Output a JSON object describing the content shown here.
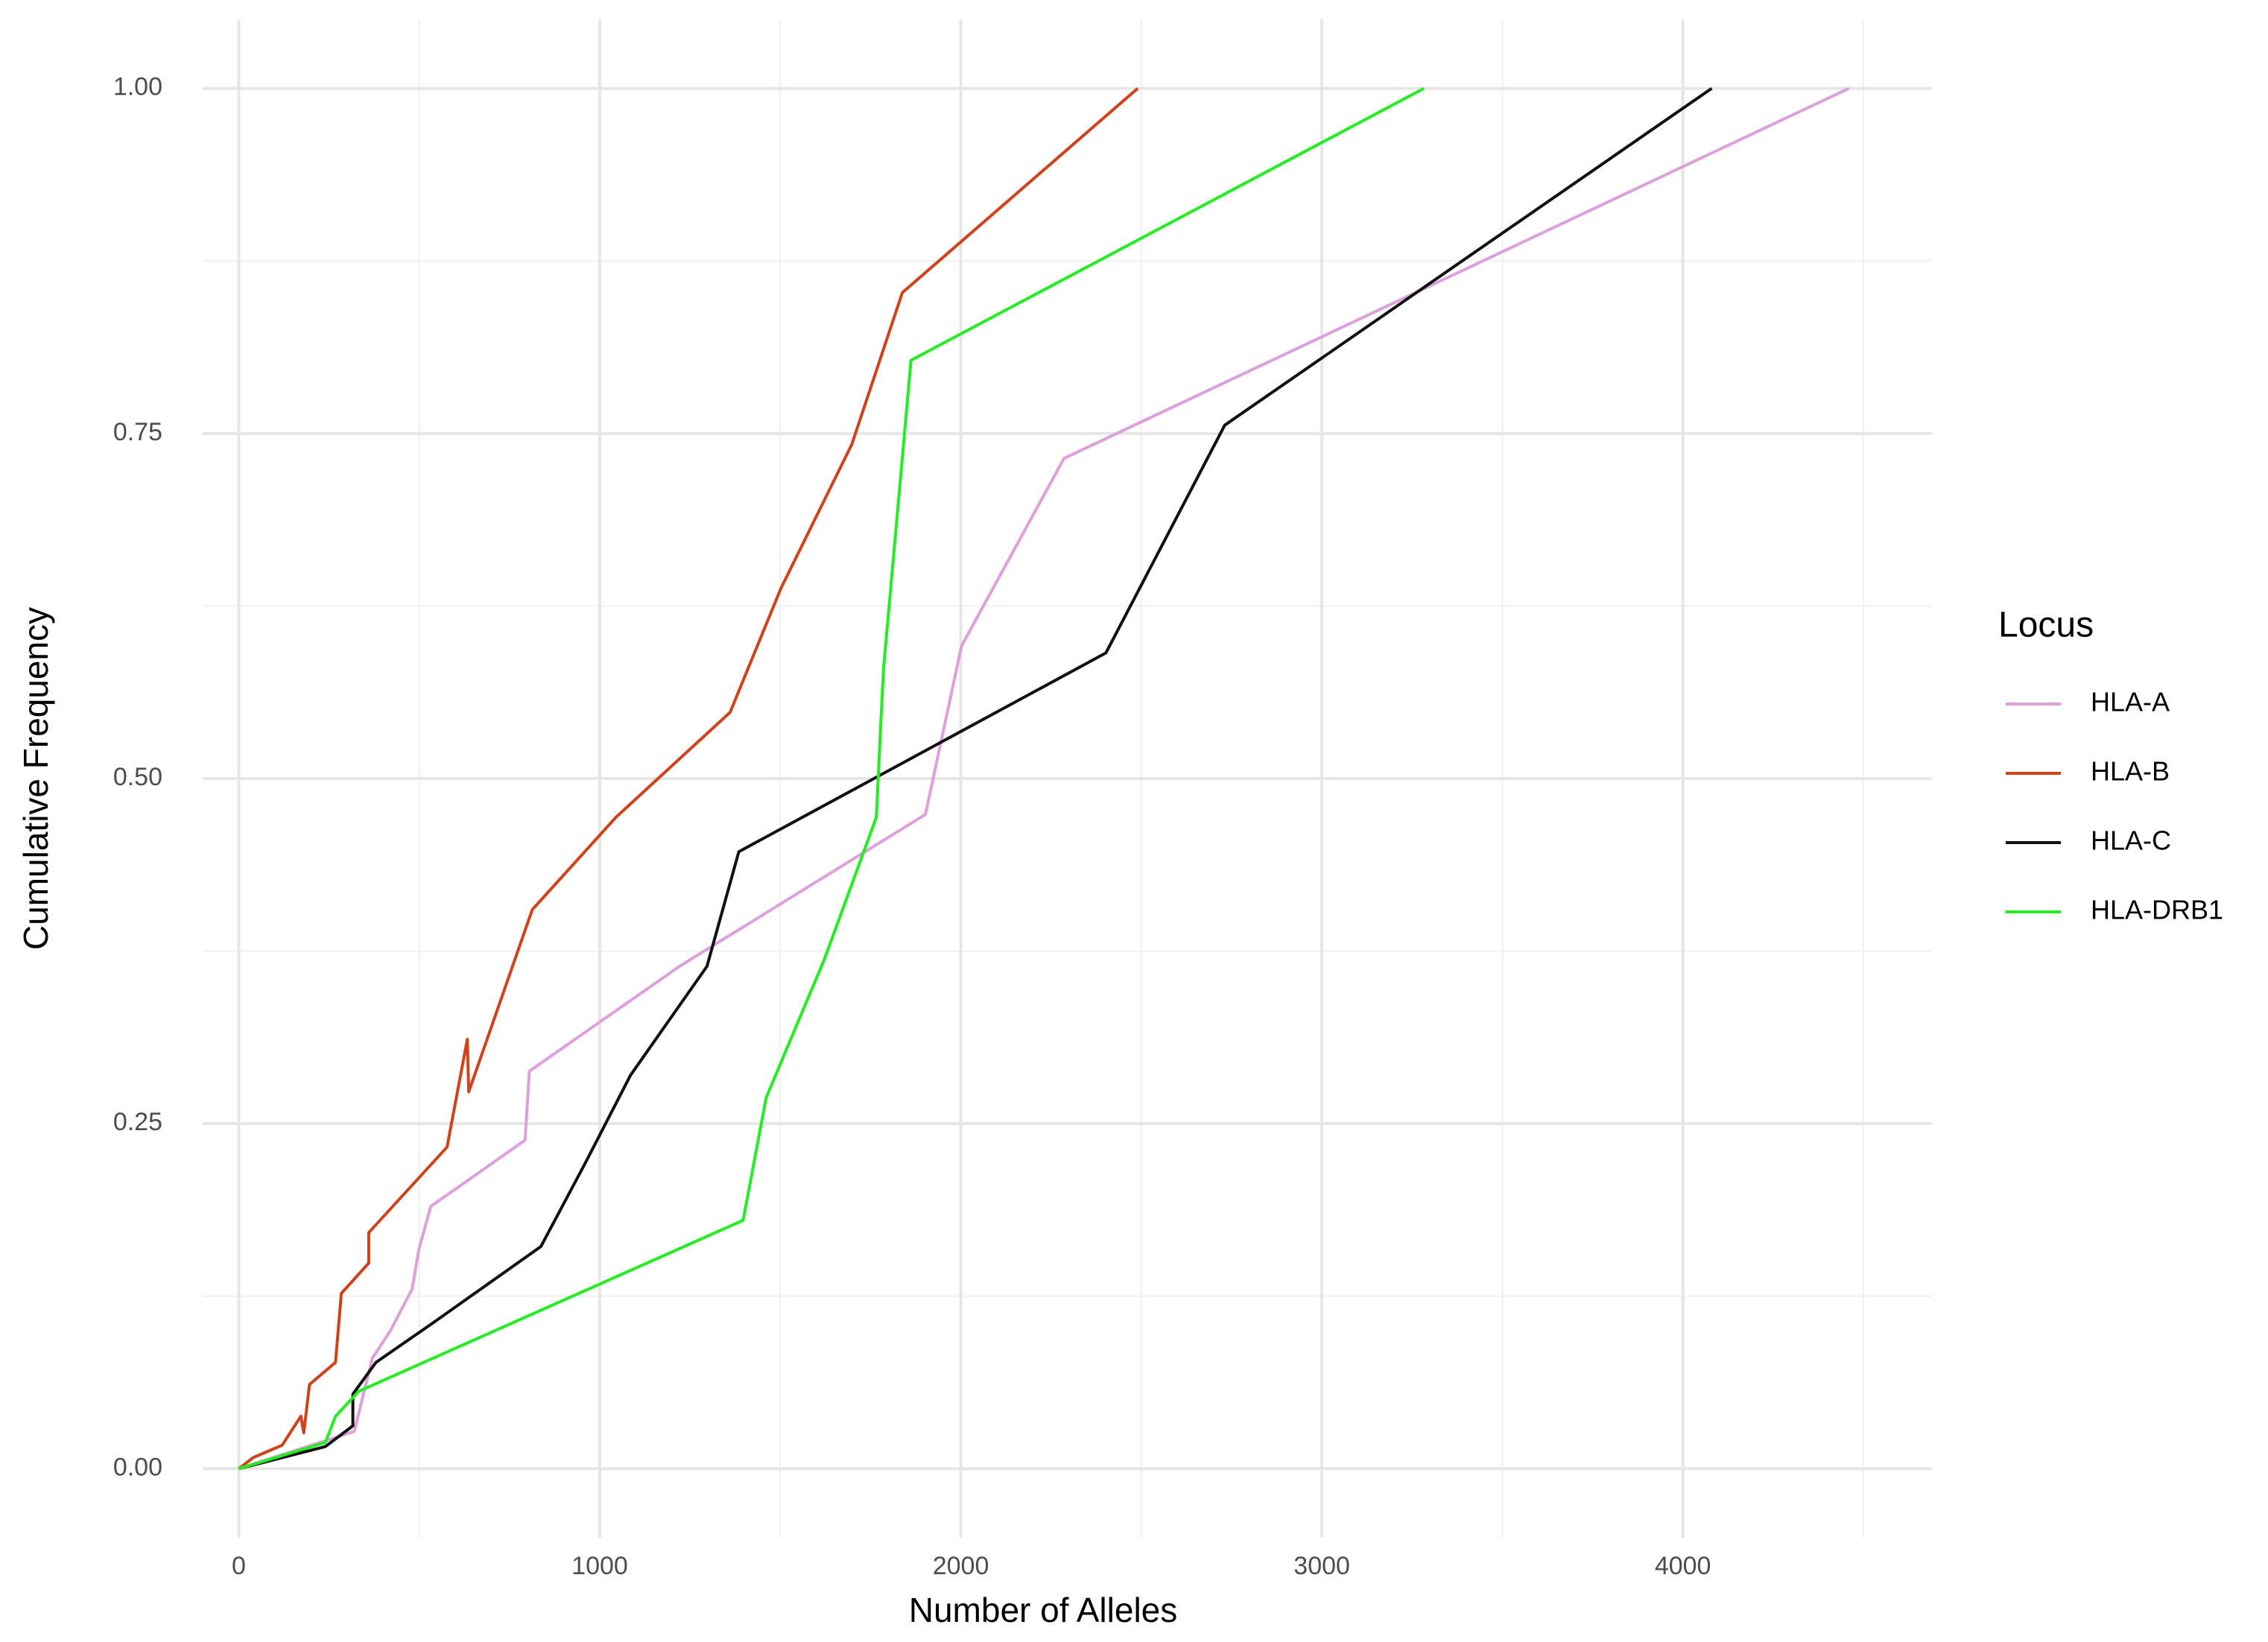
{
  "chart_data": {
    "type": "line",
    "xlabel": "Number of Alleles",
    "ylabel": "Cumulative Frequency",
    "legend_title": "Locus",
    "xlim": [
      -100,
      4690
    ],
    "ylim": [
      -0.05,
      1.05
    ],
    "xticks": [
      0,
      1000,
      2000,
      3000,
      4000
    ],
    "yticks": [
      {
        "value": 0,
        "label": "0.00"
      },
      {
        "value": 0.25,
        "label": "0.25"
      },
      {
        "value": 0.5,
        "label": "0.50"
      },
      {
        "value": 0.75,
        "label": "0.75"
      },
      {
        "value": 1,
        "label": "1.00"
      }
    ],
    "x_minor_grid": [
      500,
      1500,
      2500,
      3500,
      4500
    ],
    "y_minor_grid": [
      0.125,
      0.375,
      0.625,
      0.875
    ],
    "grid": true,
    "legend": "right",
    "series": [
      {
        "name": "HLA-A",
        "color": "#dda0dd",
        "x": [
          0,
          320,
          370,
          420,
          480,
          500,
          532,
          793,
          805,
          1221,
          1902,
          2002,
          2286,
          4460
        ],
        "y": [
          0,
          0.027,
          0.08,
          0.1,
          0.13,
          0.16,
          0.19,
          0.238,
          0.288,
          0.364,
          0.474,
          0.596,
          0.732,
          1.0
        ]
      },
      {
        "name": "HLA-B",
        "color": "#d2421a",
        "x": [
          0,
          40,
          120,
          172,
          180,
          196,
          268,
          284,
          360,
          360,
          577,
          633,
          637,
          813,
          1045,
          1361,
          1502,
          1698,
          1838,
          2490
        ],
        "y": [
          0,
          0.008,
          0.017,
          0.038,
          0.026,
          0.061,
          0.077,
          0.127,
          0.149,
          0.171,
          0.233,
          0.311,
          0.273,
          0.405,
          0.472,
          0.548,
          0.638,
          0.742,
          0.852,
          1.0
        ]
      },
      {
        "name": "HLA-C",
        "color": "#111111",
        "x": [
          0,
          240,
          316,
          316,
          380,
          540,
          837,
          961,
          1085,
          1297,
          1385,
          2402,
          2731,
          4080
        ],
        "y": [
          0,
          0.016,
          0.031,
          0.054,
          0.077,
          0.106,
          0.161,
          0.222,
          0.285,
          0.364,
          0.447,
          0.591,
          0.756,
          1.0
        ]
      },
      {
        "name": "HLA-DRB1",
        "color": "#22ee22",
        "x": [
          0,
          240,
          268,
          332,
          1397,
          1461,
          1622,
          1766,
          1778,
          1786,
          1862,
          3283
        ],
        "y": [
          0,
          0.019,
          0.038,
          0.056,
          0.18,
          0.269,
          0.369,
          0.472,
          0.538,
          0.58,
          0.803,
          1.0
        ]
      }
    ]
  }
}
